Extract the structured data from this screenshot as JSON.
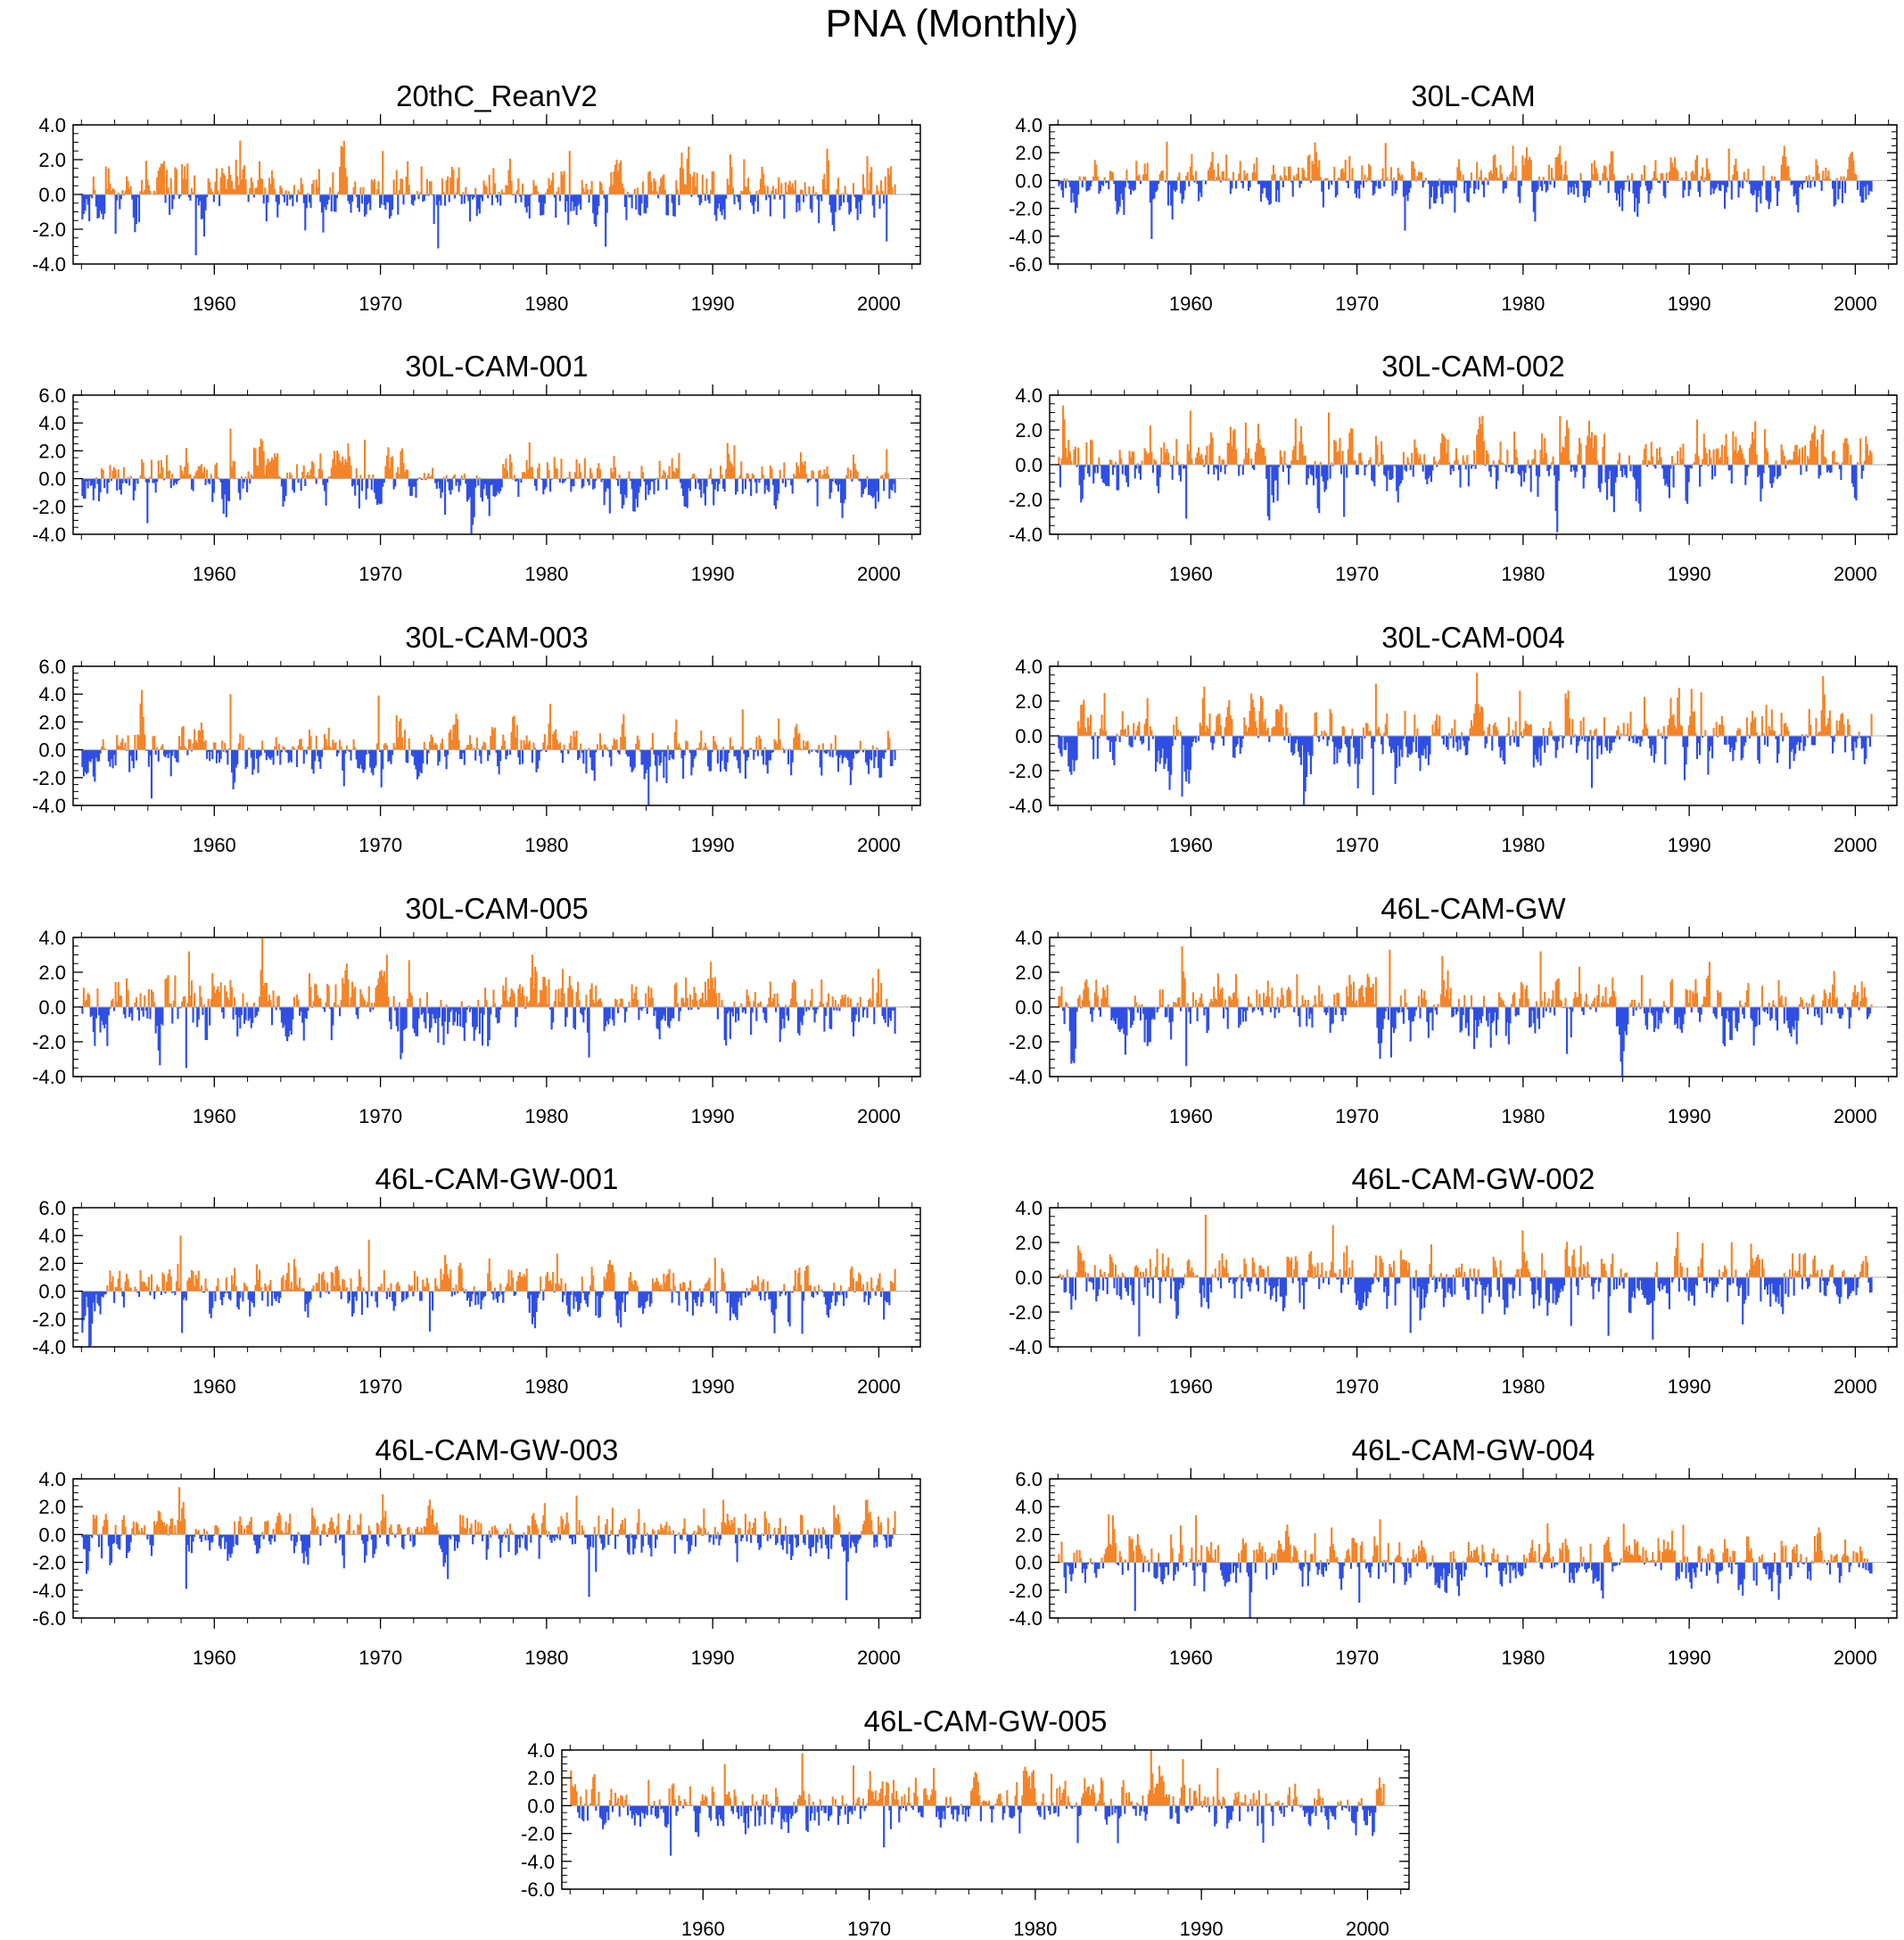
{
  "title": "PNA (Monthly)",
  "colors": {
    "positive": "#f58428",
    "negative": "#2f4fe3",
    "axis": "#000000",
    "zero_line": "#b0b0b0"
  },
  "x_ticks": [
    "1960",
    "1970",
    "1980",
    "1990",
    "2000"
  ],
  "chart_data": [
    {
      "type": "bar",
      "title": "20thC_ReanV2",
      "x_range": [
        1952,
        2001
      ],
      "xlim": [
        1951.5,
        2002.5
      ],
      "ylim": [
        -4,
        4
      ],
      "yticks": [
        "4.0",
        "2.0",
        "0.0",
        "-2.0",
        "-4.0"
      ],
      "seed": 11,
      "peaks": {
        "pos": [
          3.1,
          2.5,
          2.5,
          2.3,
          2.2
        ],
        "neg": [
          -3.5,
          -3.1,
          -3.0,
          -2.7
        ]
      }
    },
    {
      "type": "bar",
      "title": "30L-CAM",
      "x_range": [
        1952,
        2001
      ],
      "xlim": [
        1951.5,
        2002.5
      ],
      "ylim": [
        -6,
        4
      ],
      "yticks": [
        "4.0",
        "2.0",
        "0.0",
        "-2.0",
        "-4.0",
        "-6.0"
      ],
      "seed": 23,
      "peaks": {
        "pos": [
          2.8,
          2.7,
          2.5,
          2.3
        ],
        "neg": [
          -4.2,
          -3.6,
          -2.6
        ]
      }
    },
    {
      "type": "bar",
      "title": "30L-CAM-001",
      "x_range": [
        1952,
        2001
      ],
      "xlim": [
        1951.5,
        2002.5
      ],
      "ylim": [
        -4,
        6
      ],
      "yticks": [
        "6.0",
        "4.0",
        "2.0",
        "0.0",
        "-2.0",
        "-4.0"
      ],
      "seed": 37,
      "peaks": {
        "pos": [
          3.6,
          2.8,
          2.6,
          2.4
        ],
        "neg": [
          -3.2,
          -2.6,
          -2.5
        ]
      }
    },
    {
      "type": "bar",
      "title": "30L-CAM-002",
      "x_range": [
        1952,
        2001
      ],
      "xlim": [
        1951.5,
        2002.5
      ],
      "ylim": [
        -4,
        4
      ],
      "yticks": [
        "4.0",
        "2.0",
        "0.0",
        "-2.0",
        "-4.0"
      ],
      "seed": 41,
      "peaks": {
        "pos": [
          3.1,
          3.0,
          2.8,
          2.6
        ],
        "neg": [
          -3.1,
          -3.0,
          -2.7
        ]
      }
    },
    {
      "type": "bar",
      "title": "30L-CAM-003",
      "x_range": [
        1952,
        2001
      ],
      "xlim": [
        1951.5,
        2002.5
      ],
      "ylim": [
        -4,
        6
      ],
      "yticks": [
        "6.0",
        "4.0",
        "2.0",
        "0.0",
        "-2.0",
        "-4.0"
      ],
      "seed": 53,
      "peaks": {
        "pos": [
          4.0,
          3.9,
          3.3,
          2.9
        ],
        "neg": [
          -3.5,
          -2.7,
          -2.4
        ]
      }
    },
    {
      "type": "bar",
      "title": "30L-CAM-004",
      "x_range": [
        1952,
        2001
      ],
      "xlim": [
        1951.5,
        2002.5
      ],
      "ylim": [
        -4,
        4
      ],
      "yticks": [
        "4.0",
        "2.0",
        "0.0",
        "-2.0",
        "-4.0"
      ],
      "seed": 67,
      "peaks": {
        "pos": [
          3.2,
          3.0,
          2.6,
          2.5
        ],
        "neg": [
          -3.5,
          -3.4,
          -3.0
        ]
      }
    },
    {
      "type": "bar",
      "title": "30L-CAM-005",
      "x_range": [
        1952,
        2001
      ],
      "xlim": [
        1951.5,
        2002.5
      ],
      "ylim": [
        -4,
        4
      ],
      "yticks": [
        "4.0",
        "2.0",
        "0.0",
        "-2.0",
        "-4.0"
      ],
      "seed": 71,
      "peaks": {
        "pos": [
          3.2,
          3.0,
          3.0,
          2.6
        ],
        "neg": [
          -3.5,
          -3.0,
          -2.9
        ]
      }
    },
    {
      "type": "bar",
      "title": "46L-CAM-GW",
      "x_range": [
        1952,
        2001
      ],
      "xlim": [
        1951.5,
        2002.5
      ],
      "ylim": [
        -4,
        4
      ],
      "yticks": [
        "4.0",
        "2.0",
        "0.0",
        "-2.0",
        "-4.0"
      ],
      "seed": 83,
      "peaks": {
        "pos": [
          3.5,
          3.3,
          3.2,
          2.6
        ],
        "neg": [
          -3.4,
          -2.9,
          -2.7
        ]
      }
    },
    {
      "type": "bar",
      "title": "46L-CAM-GW-001",
      "x_range": [
        1952,
        2001
      ],
      "xlim": [
        1951.5,
        2002.5
      ],
      "ylim": [
        -4,
        6
      ],
      "yticks": [
        "6.0",
        "4.0",
        "2.0",
        "0.0",
        "-2.0",
        "-4.0"
      ],
      "seed": 97,
      "peaks": {
        "pos": [
          4.0,
          3.7,
          2.7,
          2.4
        ],
        "neg": [
          -3.0,
          -2.9,
          -2.6
        ]
      }
    },
    {
      "type": "bar",
      "title": "46L-CAM-GW-002",
      "x_range": [
        1952,
        2001
      ],
      "xlim": [
        1951.5,
        2002.5
      ],
      "ylim": [
        -4,
        4
      ],
      "yticks": [
        "4.0",
        "2.0",
        "0.0",
        "-2.0",
        "-4.0"
      ],
      "seed": 101,
      "peaks": {
        "pos": [
          3.6,
          3.0,
          2.7,
          2.6
        ],
        "neg": [
          -3.4,
          -3.2,
          -2.8
        ]
      }
    },
    {
      "type": "bar",
      "title": "46L-CAM-GW-003",
      "x_range": [
        1952,
        2001
      ],
      "xlim": [
        1951.5,
        2002.5
      ],
      "ylim": [
        -6,
        4
      ],
      "yticks": [
        "4.0",
        "2.0",
        "0.0",
        "-2.0",
        "-4.0",
        "-6.0"
      ],
      "seed": 113,
      "peaks": {
        "pos": [
          3.4,
          2.9,
          2.8,
          2.5
        ],
        "neg": [
          -3.9,
          -3.2,
          -2.7
        ]
      }
    },
    {
      "type": "bar",
      "title": "46L-CAM-GW-004",
      "x_range": [
        1952,
        2001
      ],
      "xlim": [
        1951.5,
        2002.5
      ],
      "ylim": [
        -4,
        6
      ],
      "yticks": [
        "6.0",
        "4.0",
        "2.0",
        "0.0",
        "-2.0",
        "-4.0"
      ],
      "seed": 127,
      "peaks": {
        "pos": [
          3.4,
          3.1,
          2.8,
          2.7
        ],
        "neg": [
          -3.5,
          -2.9,
          -2.6
        ]
      }
    },
    {
      "type": "bar",
      "title": "46L-CAM-GW-005",
      "x_range": [
        1952,
        2001
      ],
      "xlim": [
        1951.5,
        2002.5
      ],
      "ylim": [
        -6,
        4
      ],
      "yticks": [
        "4.0",
        "2.0",
        "0.0",
        "-2.0",
        "-4.0",
        "-6.0"
      ],
      "seed": 139,
      "peaks": {
        "pos": [
          3.0,
          2.9,
          2.8,
          2.7
        ],
        "neg": [
          -3.6,
          -3.0,
          -2.7
        ]
      }
    }
  ]
}
